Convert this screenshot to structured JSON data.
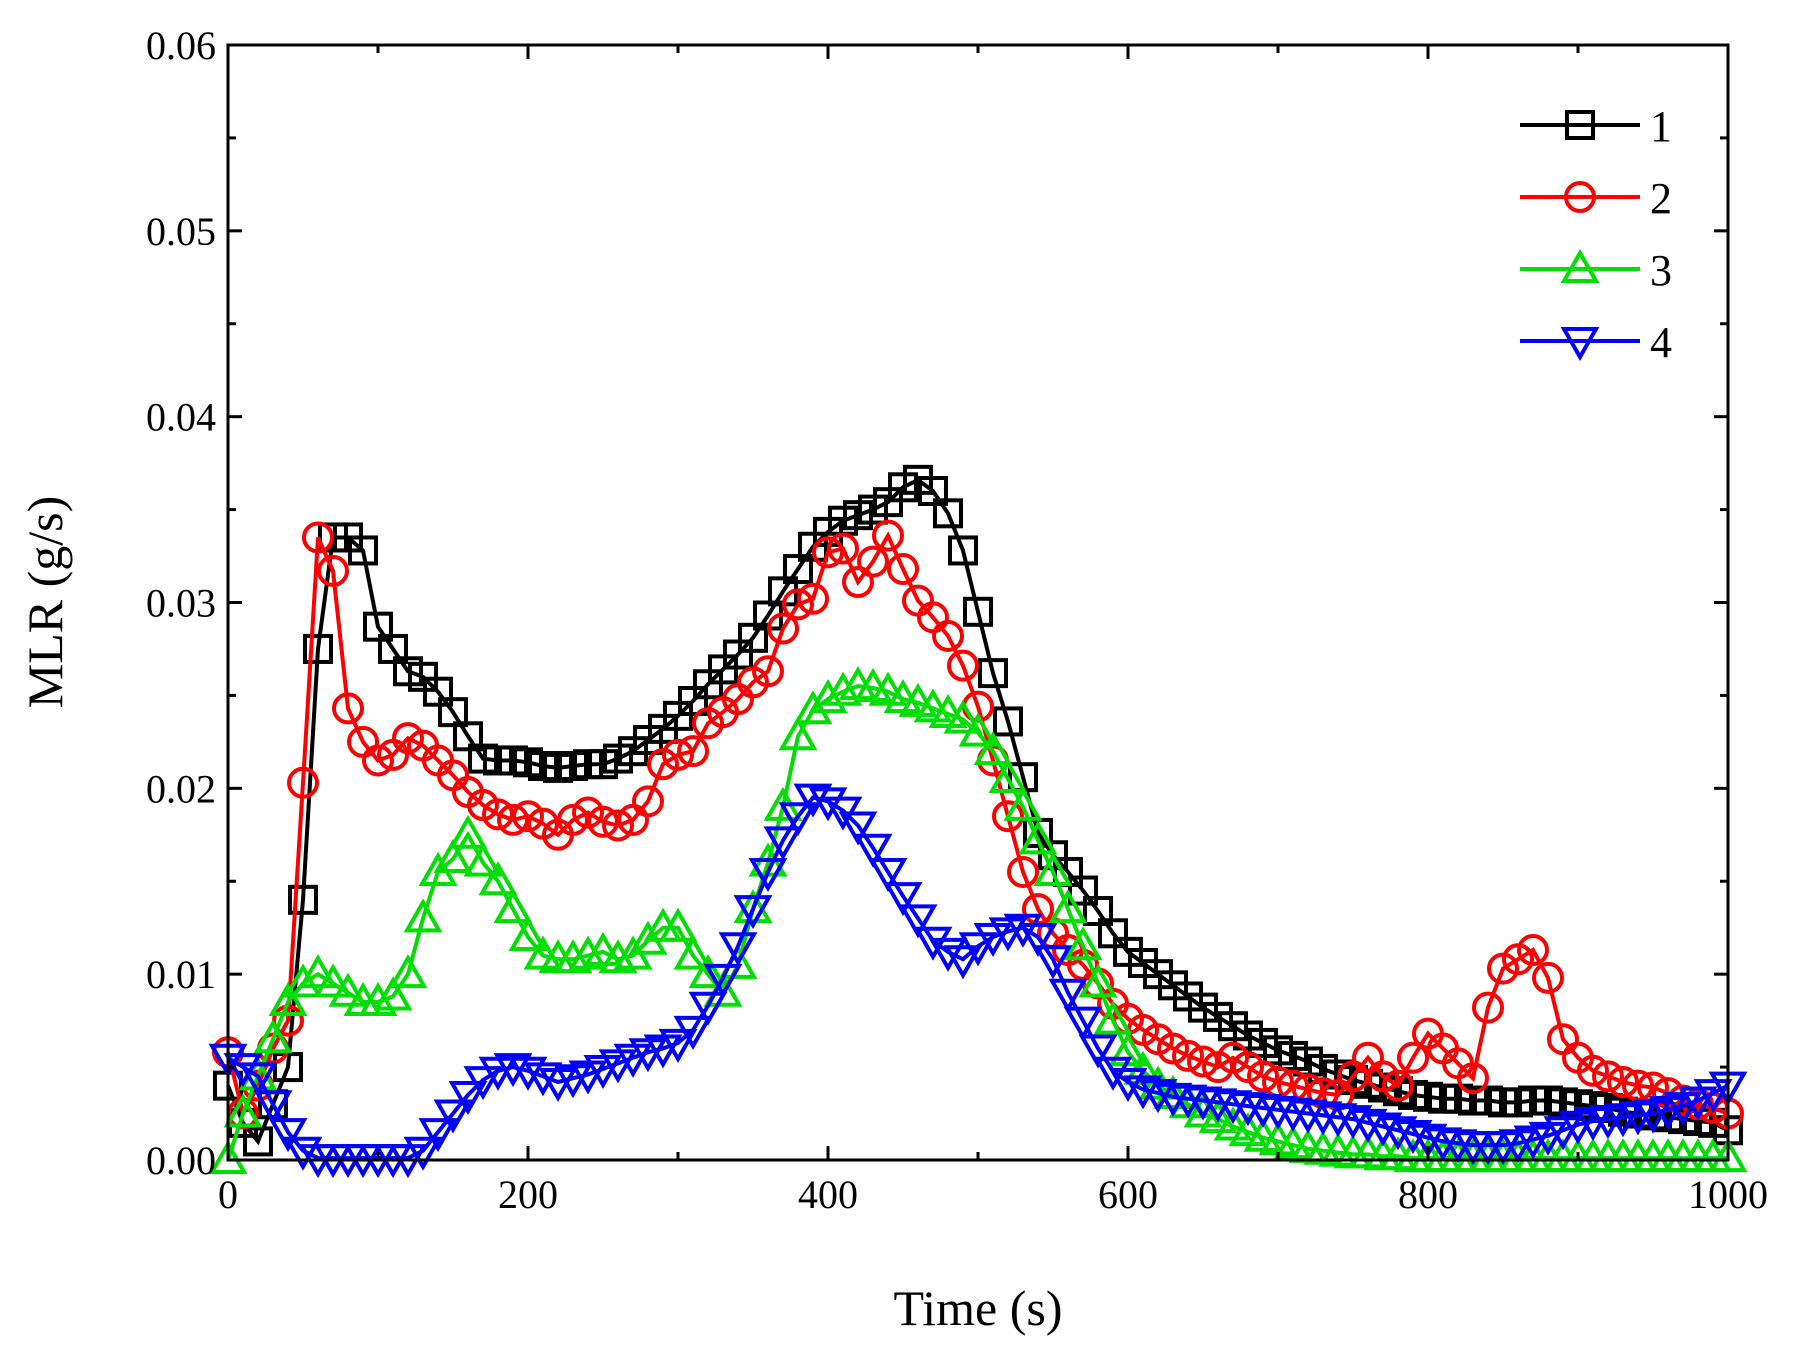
{
  "chart_data": {
    "type": "line",
    "title": "",
    "xlabel": "Time (s)",
    "ylabel": "MLR (g/s)",
    "xlim": [
      0,
      1000
    ],
    "ylim": [
      0,
      0.06
    ],
    "xticks": [
      0,
      200,
      400,
      600,
      800,
      1000
    ],
    "xtick_labels": [
      "0",
      "200",
      "400",
      "600",
      "800",
      "1000"
    ],
    "yticks": [
      0,
      0.01,
      0.02,
      0.03,
      0.04,
      0.05,
      0.06
    ],
    "ytick_labels": [
      "0.00",
      "0.01",
      "0.02",
      "0.03",
      "0.04",
      "0.05",
      "0.06"
    ],
    "legend_position": "top-right",
    "grid": false,
    "series": [
      {
        "name": "1",
        "color": "#000000",
        "marker": "square",
        "x": [
          0,
          10,
          20,
          30,
          40,
          50,
          60,
          70,
          80,
          90,
          100,
          110,
          120,
          130,
          140,
          150,
          160,
          170,
          180,
          190,
          200,
          210,
          220,
          230,
          240,
          250,
          260,
          270,
          280,
          290,
          300,
          310,
          320,
          330,
          340,
          350,
          360,
          370,
          380,
          390,
          400,
          410,
          420,
          430,
          440,
          450,
          460,
          470,
          480,
          490,
          500,
          510,
          520,
          530,
          540,
          550,
          560,
          570,
          580,
          590,
          600,
          610,
          620,
          630,
          640,
          650,
          660,
          670,
          680,
          690,
          700,
          710,
          720,
          730,
          740,
          750,
          760,
          770,
          780,
          790,
          800,
          810,
          820,
          830,
          840,
          850,
          860,
          870,
          880,
          890,
          900,
          910,
          920,
          930,
          940,
          950,
          960,
          970,
          980,
          990,
          1000
        ],
        "values": [
          0.004,
          0.002,
          0.001,
          0.003,
          0.005,
          0.014,
          0.0275,
          0.0335,
          0.0335,
          0.0328,
          0.0287,
          0.0275,
          0.0263,
          0.026,
          0.0252,
          0.0241,
          0.0228,
          0.0216,
          0.0215,
          0.0215,
          0.0214,
          0.0212,
          0.0211,
          0.0212,
          0.0213,
          0.0213,
          0.0216,
          0.022,
          0.0226,
          0.0232,
          0.0239,
          0.0247,
          0.0256,
          0.0264,
          0.0272,
          0.0281,
          0.0293,
          0.0306,
          0.0318,
          0.033,
          0.0338,
          0.0344,
          0.0347,
          0.035,
          0.0354,
          0.0362,
          0.0366,
          0.036,
          0.0348,
          0.0328,
          0.0295,
          0.0262,
          0.0236,
          0.0206,
          0.0176,
          0.0164,
          0.0155,
          0.0145,
          0.0134,
          0.0122,
          0.0112,
          0.0106,
          0.01,
          0.0094,
          0.0088,
          0.0082,
          0.0077,
          0.0072,
          0.0067,
          0.0063,
          0.0059,
          0.0056,
          0.0053,
          0.0049,
          0.0046,
          0.0043,
          0.0041,
          0.0039,
          0.0037,
          0.0035,
          0.0034,
          0.0033,
          0.0033,
          0.0032,
          0.0032,
          0.0031,
          0.0031,
          0.0032,
          0.0032,
          0.0031,
          0.003,
          0.0029,
          0.0028,
          0.0026,
          0.0025,
          0.0024,
          0.0023,
          0.0022,
          0.0021,
          0.002,
          0.0016
        ]
      },
      {
        "name": "2",
        "color": "#ff0000",
        "marker": "circle",
        "x": [
          0,
          10,
          20,
          30,
          40,
          50,
          60,
          70,
          80,
          90,
          100,
          110,
          120,
          130,
          140,
          150,
          160,
          170,
          180,
          190,
          200,
          210,
          220,
          230,
          240,
          250,
          260,
          270,
          280,
          290,
          300,
          310,
          320,
          330,
          340,
          350,
          360,
          370,
          380,
          390,
          400,
          410,
          420,
          430,
          440,
          450,
          460,
          470,
          480,
          490,
          500,
          510,
          520,
          530,
          540,
          550,
          560,
          570,
          580,
          590,
          600,
          610,
          620,
          630,
          640,
          650,
          660,
          670,
          680,
          690,
          700,
          710,
          720,
          730,
          740,
          750,
          760,
          770,
          780,
          790,
          800,
          810,
          820,
          830,
          840,
          850,
          860,
          870,
          880,
          890,
          900,
          910,
          920,
          930,
          940,
          950,
          960,
          970,
          980,
          990,
          1000
        ],
        "values": [
          0.0058,
          0.0025,
          0.004,
          0.006,
          0.0075,
          0.0203,
          0.0335,
          0.0317,
          0.0243,
          0.0225,
          0.0215,
          0.0218,
          0.0227,
          0.0223,
          0.0215,
          0.0207,
          0.0198,
          0.0191,
          0.0186,
          0.0183,
          0.0185,
          0.0181,
          0.0175,
          0.0183,
          0.0187,
          0.0182,
          0.018,
          0.0183,
          0.0193,
          0.0213,
          0.0218,
          0.022,
          0.0235,
          0.0241,
          0.0248,
          0.0257,
          0.0263,
          0.0286,
          0.0299,
          0.0302,
          0.0327,
          0.0329,
          0.0311,
          0.0322,
          0.0336,
          0.0318,
          0.0301,
          0.0292,
          0.0282,
          0.0266,
          0.0244,
          0.0215,
          0.0185,
          0.0155,
          0.0135,
          0.0122,
          0.0113,
          0.0105,
          0.0095,
          0.0084,
          0.0076,
          0.007,
          0.0065,
          0.006,
          0.0056,
          0.0053,
          0.005,
          0.0055,
          0.005,
          0.0045,
          0.0042,
          0.004,
          0.0038,
          0.0036,
          0.0035,
          0.0045,
          0.0055,
          0.0045,
          0.004,
          0.0055,
          0.0068,
          0.006,
          0.0052,
          0.0044,
          0.0082,
          0.0103,
          0.0108,
          0.0113,
          0.0098,
          0.0065,
          0.0055,
          0.0048,
          0.0045,
          0.0042,
          0.004,
          0.0039,
          0.0036,
          0.0032,
          0.003,
          0.0028,
          0.0025
        ]
      },
      {
        "name": "3",
        "color": "#00dd00",
        "marker": "triangle-up",
        "x": [
          0,
          10,
          20,
          30,
          40,
          50,
          60,
          70,
          80,
          90,
          100,
          110,
          120,
          130,
          140,
          150,
          160,
          170,
          180,
          190,
          200,
          210,
          220,
          230,
          240,
          250,
          260,
          270,
          280,
          290,
          300,
          310,
          320,
          330,
          340,
          350,
          360,
          370,
          380,
          390,
          400,
          410,
          420,
          430,
          440,
          450,
          460,
          470,
          480,
          490,
          500,
          510,
          520,
          530,
          540,
          550,
          560,
          570,
          580,
          590,
          600,
          610,
          620,
          630,
          640,
          650,
          660,
          670,
          680,
          690,
          700,
          710,
          720,
          730,
          740,
          750,
          760,
          770,
          780,
          790,
          800,
          810,
          820,
          830,
          840,
          850,
          860,
          870,
          880,
          890,
          900,
          910,
          920,
          930,
          940,
          950,
          960,
          970,
          980,
          990,
          1000
        ],
        "values": [
          0.0,
          0.0025,
          0.0045,
          0.0065,
          0.0085,
          0.0095,
          0.01,
          0.0095,
          0.009,
          0.0085,
          0.0085,
          0.0088,
          0.01,
          0.013,
          0.0155,
          0.0162,
          0.0175,
          0.016,
          0.015,
          0.0135,
          0.012,
          0.011,
          0.0108,
          0.0108,
          0.011,
          0.0112,
          0.0108,
          0.011,
          0.0118,
          0.0125,
          0.0125,
          0.011,
          0.01,
          0.009,
          0.0105,
          0.0135,
          0.016,
          0.019,
          0.0228,
          0.0242,
          0.0248,
          0.0252,
          0.0255,
          0.0254,
          0.0252,
          0.0248,
          0.0246,
          0.0243,
          0.024,
          0.0237,
          0.023,
          0.022,
          0.0205,
          0.019,
          0.0172,
          0.0155,
          0.0135,
          0.0115,
          0.0095,
          0.0075,
          0.0058,
          0.0048,
          0.004,
          0.0035,
          0.003,
          0.0025,
          0.0022,
          0.0018,
          0.0015,
          0.0012,
          0.001,
          0.0008,
          0.0006,
          0.0005,
          0.0004,
          0.0003,
          0.0003,
          0.0002,
          0.0002,
          0.0001,
          0.0001,
          0.0001,
          0.0001,
          0.0001,
          0.0001,
          0.0001,
          0.0001,
          0.0001,
          0.0001,
          0.0001,
          0.0001,
          0.0001,
          0.0001,
          0.0001,
          0.0001,
          0.0001,
          0.0001,
          0.0001,
          0.0001,
          0.0001,
          0.0001
        ]
      },
      {
        "name": "4",
        "color": "#0000ff",
        "marker": "triangle-down",
        "x": [
          0,
          10,
          20,
          30,
          40,
          50,
          60,
          70,
          80,
          90,
          100,
          110,
          120,
          130,
          140,
          150,
          160,
          170,
          180,
          190,
          200,
          210,
          220,
          230,
          240,
          250,
          260,
          270,
          280,
          290,
          300,
          310,
          320,
          330,
          340,
          350,
          360,
          370,
          380,
          390,
          400,
          410,
          420,
          430,
          440,
          450,
          460,
          470,
          480,
          490,
          500,
          510,
          520,
          530,
          540,
          550,
          560,
          570,
          580,
          590,
          600,
          610,
          620,
          630,
          640,
          650,
          660,
          670,
          680,
          690,
          700,
          710,
          720,
          730,
          740,
          750,
          760,
          770,
          780,
          790,
          800,
          810,
          820,
          830,
          840,
          850,
          860,
          870,
          880,
          890,
          900,
          910,
          920,
          930,
          940,
          950,
          960,
          970,
          980,
          990,
          1000
        ],
        "values": [
          0.0055,
          0.005,
          0.0045,
          0.003,
          0.0015,
          0.0005,
          0.0001,
          0.0001,
          0.0001,
          0.0001,
          0.0001,
          0.0001,
          0.0001,
          0.0005,
          0.0015,
          0.0025,
          0.0035,
          0.0043,
          0.0048,
          0.005,
          0.0048,
          0.0045,
          0.0042,
          0.0044,
          0.0046,
          0.0049,
          0.0052,
          0.0055,
          0.0058,
          0.006,
          0.0063,
          0.007,
          0.0083,
          0.0098,
          0.0115,
          0.0135,
          0.0155,
          0.0172,
          0.0185,
          0.0195,
          0.0193,
          0.0188,
          0.018,
          0.0168,
          0.0155,
          0.0142,
          0.013,
          0.0118,
          0.0112,
          0.0108,
          0.0115,
          0.012,
          0.0123,
          0.0125,
          0.012,
          0.0108,
          0.009,
          0.0075,
          0.006,
          0.0048,
          0.0042,
          0.0038,
          0.0036,
          0.0034,
          0.0033,
          0.0032,
          0.0031,
          0.003,
          0.0029,
          0.0028,
          0.0027,
          0.0026,
          0.0025,
          0.0024,
          0.0023,
          0.0022,
          0.002,
          0.0018,
          0.0016,
          0.0014,
          0.0012,
          0.001,
          0.0009,
          0.0008,
          0.0008,
          0.0008,
          0.0009,
          0.0011,
          0.0013,
          0.0016,
          0.0019,
          0.0021,
          0.0022,
          0.0023,
          0.0024,
          0.0025,
          0.0027,
          0.0029,
          0.0032,
          0.0036,
          0.004
        ]
      }
    ]
  }
}
